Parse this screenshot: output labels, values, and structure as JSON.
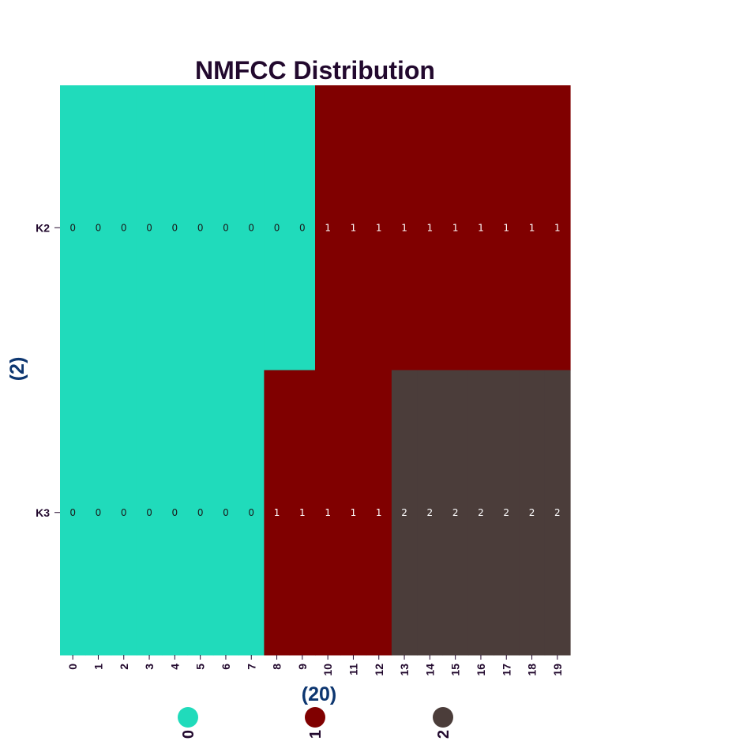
{
  "chart_data": {
    "type": "heatmap",
    "title": "NMFCC Distribution",
    "xlabel": "(20)",
    "ylabel": "(2)",
    "columns": [
      "0",
      "1",
      "2",
      "3",
      "4",
      "5",
      "6",
      "7",
      "8",
      "9",
      "10",
      "11",
      "12",
      "13",
      "14",
      "15",
      "16",
      "17",
      "18",
      "19"
    ],
    "rows": [
      "K2",
      "K3"
    ],
    "values": [
      [
        0,
        0,
        0,
        0,
        0,
        0,
        0,
        0,
        0,
        0,
        1,
        1,
        1,
        1,
        1,
        1,
        1,
        1,
        1,
        1
      ],
      [
        0,
        0,
        0,
        0,
        0,
        0,
        0,
        0,
        1,
        1,
        1,
        1,
        1,
        2,
        2,
        2,
        2,
        2,
        2,
        2
      ]
    ],
    "category_colors": {
      "0": "#20dbbb",
      "1": "#800000",
      "2": "#4b3d3a"
    },
    "label_colors": {
      "0": "#1a1a1a",
      "1": "#ffffff",
      "2": "#ffffff"
    },
    "legend": [
      {
        "label": "0",
        "color": "#20dbbb"
      },
      {
        "label": "1",
        "color": "#800000"
      },
      {
        "label": "2",
        "color": "#4b3d3a"
      }
    ],
    "legend_placement": "bottom",
    "grid": false
  }
}
